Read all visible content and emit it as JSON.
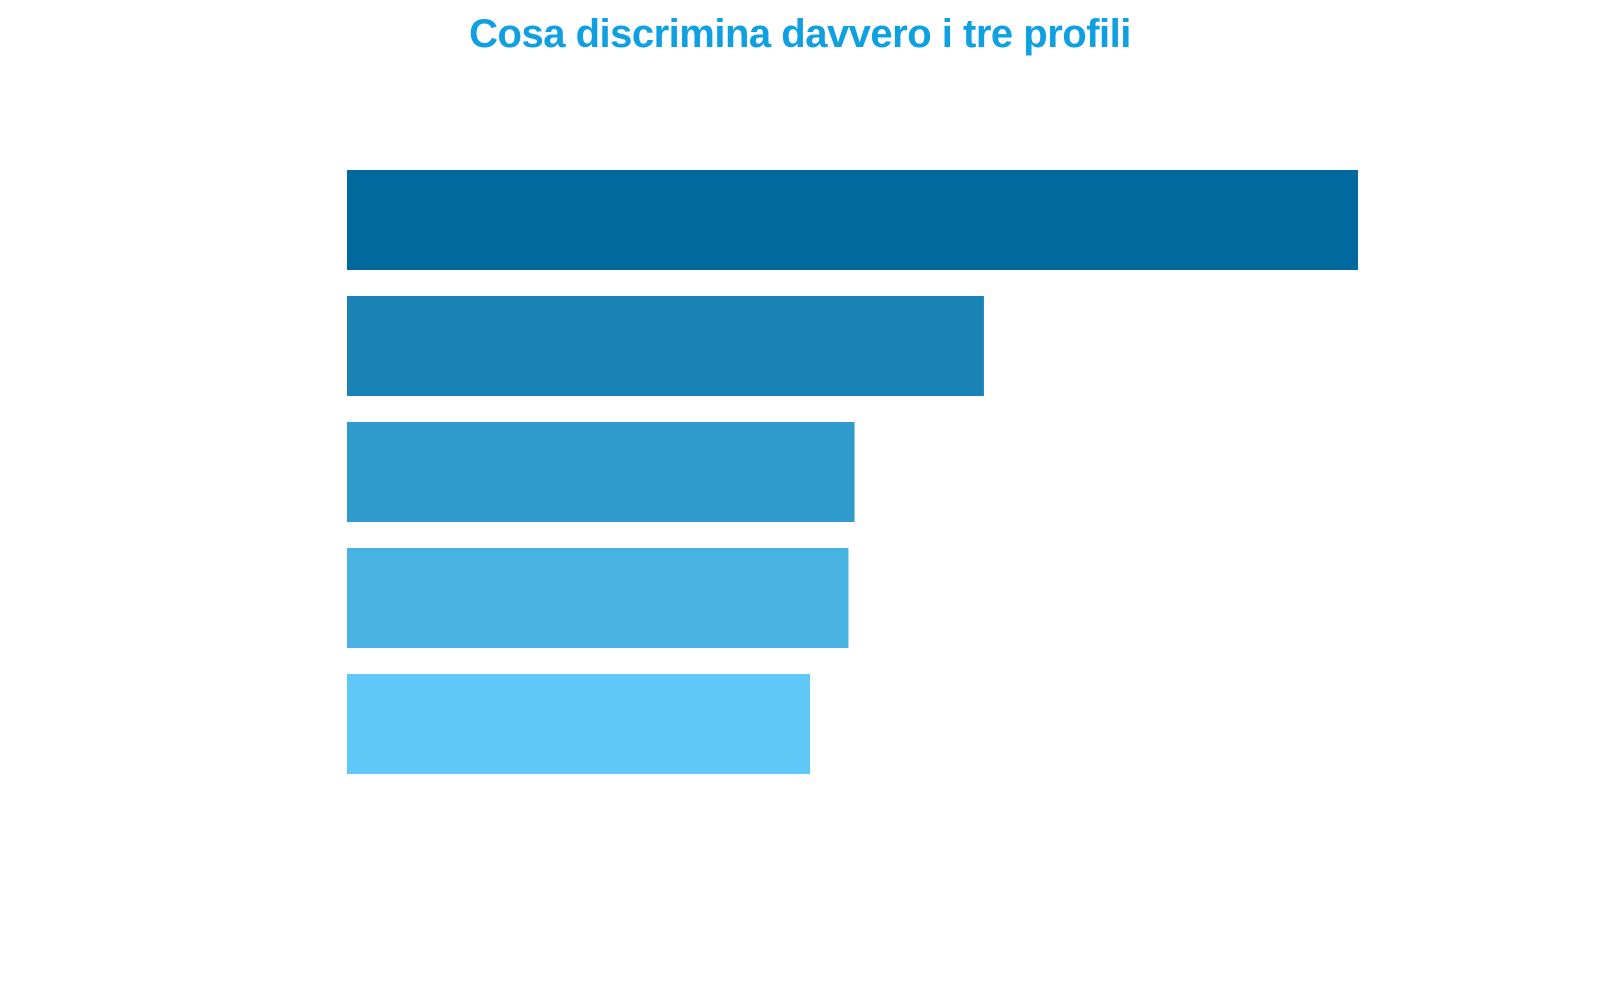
{
  "chart_data": {
    "type": "bar",
    "orientation": "horizontal",
    "title": "Cosa discrimina davvero i tre profili",
    "xlabel": "",
    "ylabel": "",
    "categories": [
      "",
      "",
      "",
      "",
      ""
    ],
    "values": [
      1.0,
      0.63,
      0.502,
      0.496,
      0.458
    ],
    "xlim": [
      0,
      1.0
    ],
    "grid": false,
    "colors": [
      "#02699f",
      "#1a83b5",
      "#2f9acc",
      "#48b2e2",
      "#60c8f8"
    ]
  },
  "theme": {
    "title_color": "#0ea0e0"
  }
}
